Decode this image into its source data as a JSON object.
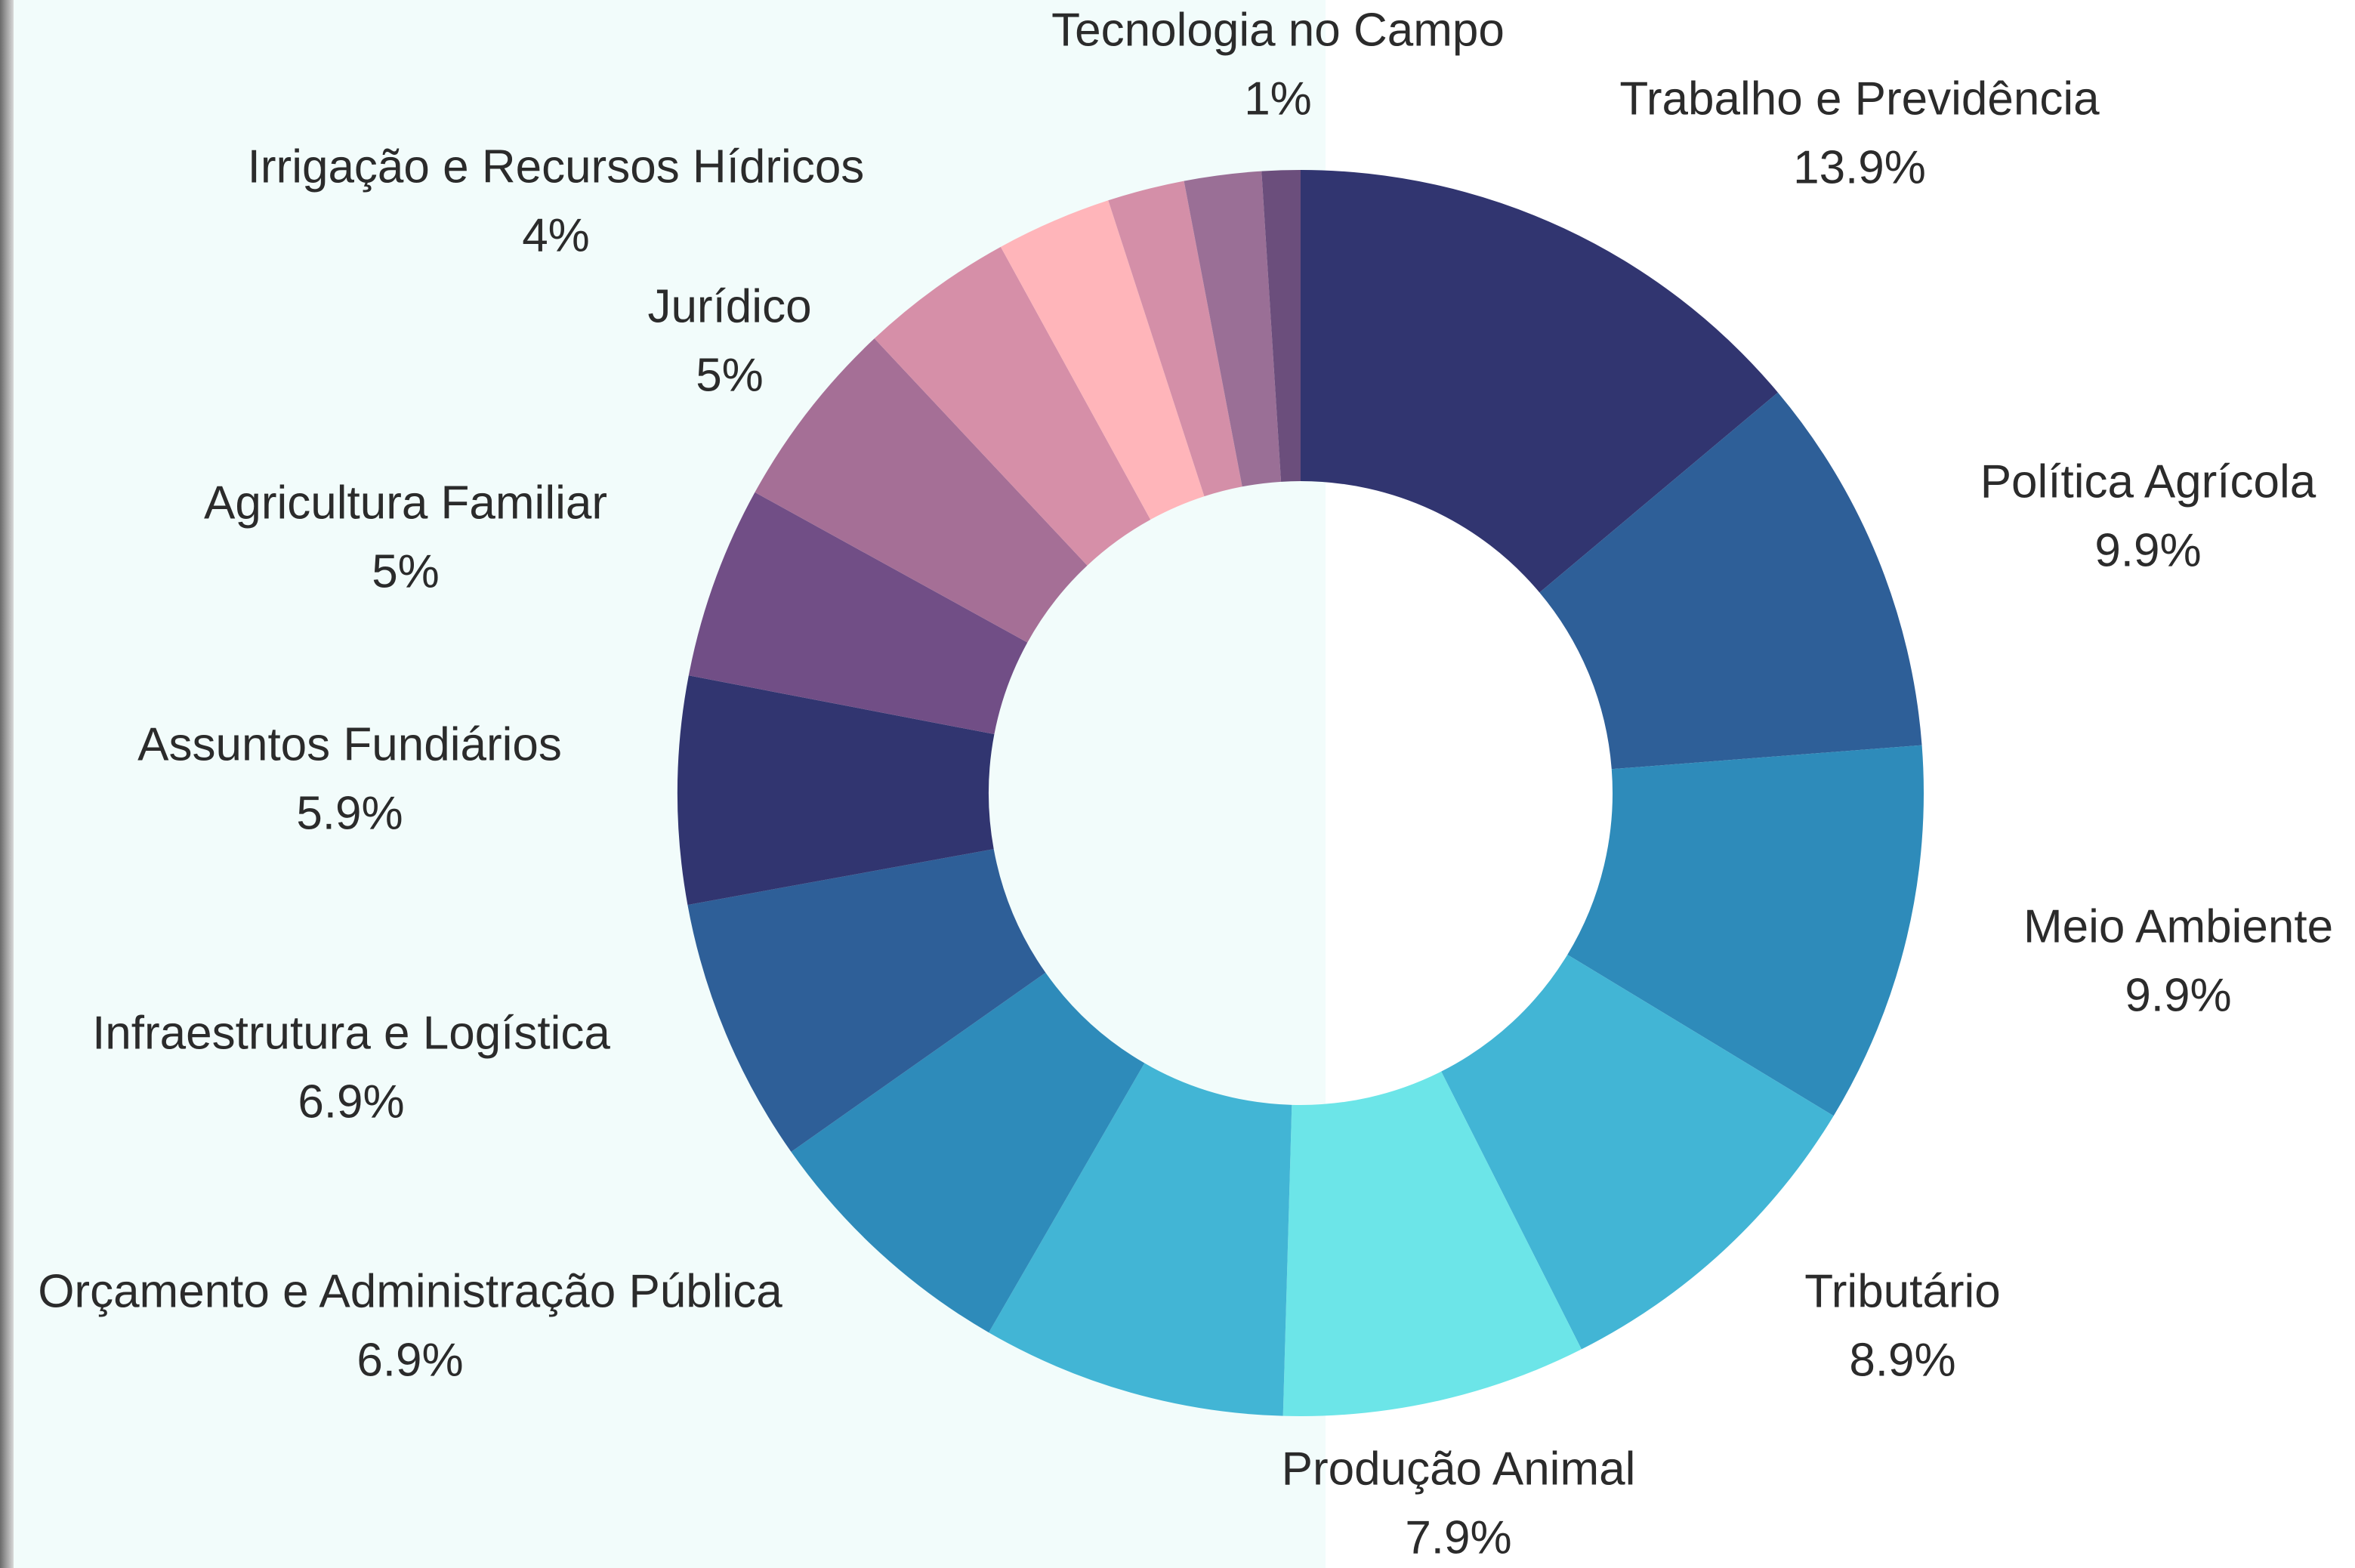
{
  "chart_data": {
    "type": "donut",
    "categories": [
      "Trabalho e Previdência",
      "Política Agrícola",
      "Meio Ambiente",
      "Tributário",
      "Produção Animal",
      null,
      "Orçamento e Administração Pública",
      "Infraestrutura e Logística",
      "Assuntos Fundiários",
      "Agricultura Familiar",
      "Jurídico",
      "Irrigação e Recursos Hídricos",
      null,
      null,
      null,
      "Tecnologia no Campo"
    ],
    "values": [
      13.9,
      9.9,
      9.9,
      8.9,
      7.9,
      7.9,
      6.9,
      6.9,
      5.9,
      5,
      5,
      4,
      3,
      2,
      2,
      1
    ],
    "value_labels": [
      "13.9%",
      "9.9%",
      "9.9%",
      "8.9%",
      "7.9%",
      null,
      "6.9%",
      "6.9%",
      "5.9%",
      "5%",
      "5%",
      "4%",
      null,
      null,
      null,
      "1%"
    ],
    "colors": [
      "#313570",
      "#2e5f98",
      "#2e8bba",
      "#42b5d5",
      "#6ce5e8",
      "#42b5d5",
      "#2e8bba",
      "#2e5f98",
      "#313570",
      "#714e86",
      "#a56f96",
      "#d68fa8",
      "#ffb5ba",
      "#d48fa8",
      "#9a6f96",
      "#6b4e7c"
    ]
  }
}
